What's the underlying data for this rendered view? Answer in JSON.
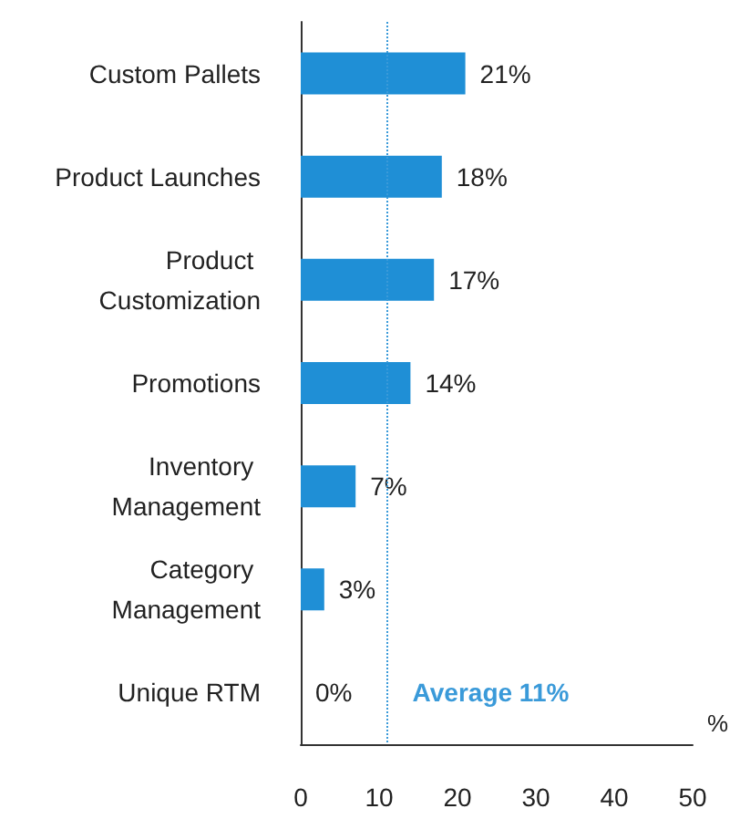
{
  "chart_data": {
    "type": "bar",
    "orientation": "horizontal",
    "categories": [
      "Custom Pallets",
      "Product Launches",
      "Product Customization",
      "Promotions",
      "Inventory Management",
      "Category Management",
      "Unique RTM"
    ],
    "values": [
      21,
      18,
      17,
      14,
      7,
      3,
      0
    ],
    "value_labels": [
      "21%",
      "18%",
      "17%",
      "14%",
      "7%",
      "3%",
      "0%"
    ],
    "color": "#1f8fd6",
    "xlabel": "%",
    "xlim": [
      0,
      50
    ],
    "xticks": [
      0,
      10,
      20,
      30,
      40,
      50
    ],
    "ref_lines": [
      {
        "axis": "x",
        "value": 11,
        "label": "Average 11%",
        "color": "#3a9ad9",
        "line_style": "dotted"
      }
    ]
  }
}
